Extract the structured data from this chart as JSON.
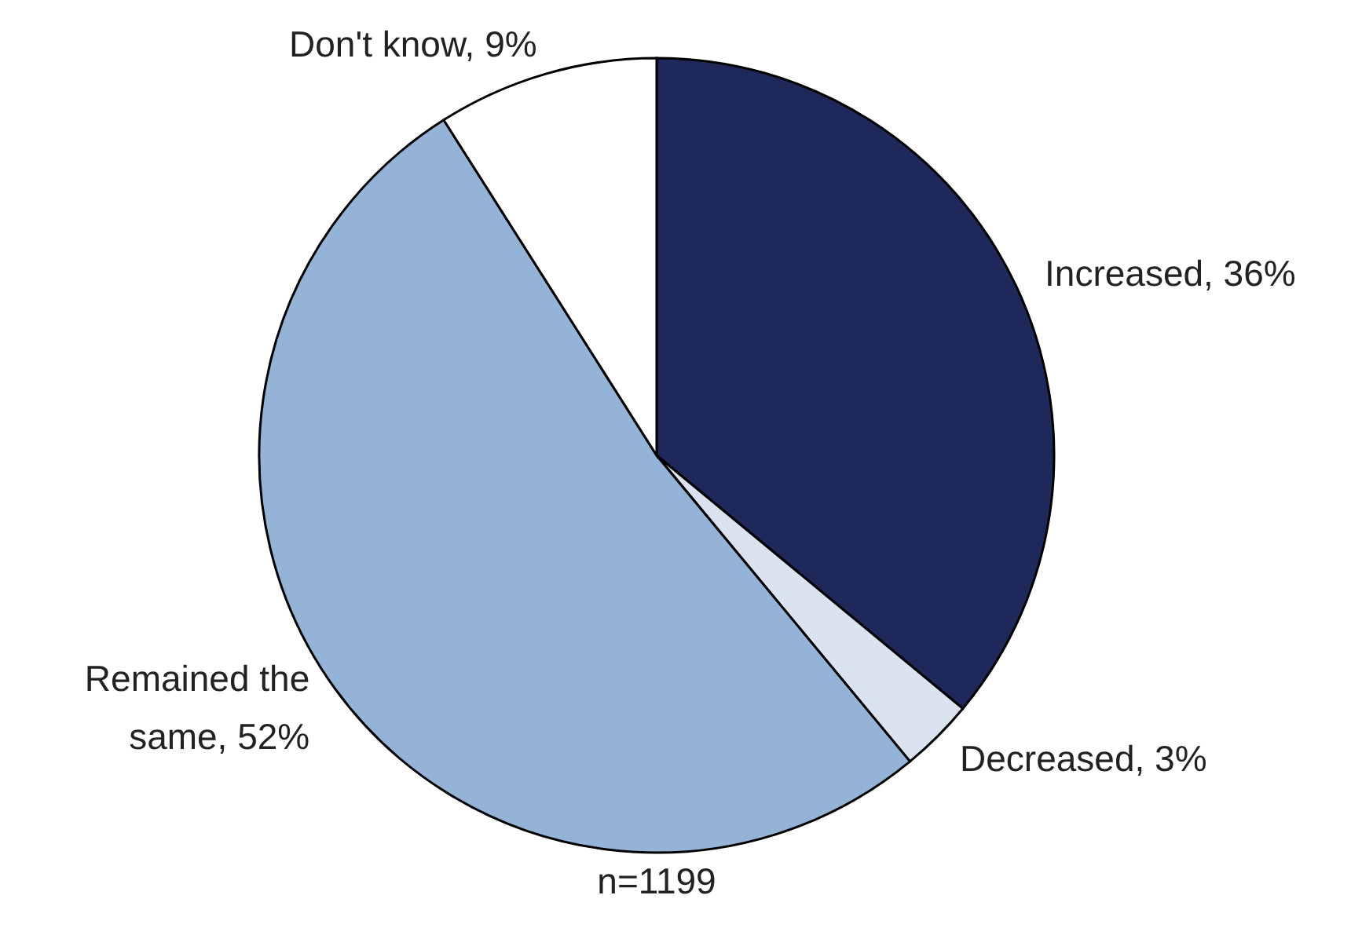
{
  "chart_data": {
    "type": "pie",
    "categories": [
      "Increased",
      "Decreased",
      "Remained the same",
      "Don't know"
    ],
    "values": [
      36,
      3,
      52,
      9
    ],
    "value_labels": [
      "36%",
      "3%",
      "52%",
      "9%"
    ],
    "colors": [
      "#1f285a",
      "#dce3f0",
      "#95b3d7",
      "#ffffff"
    ],
    "annotations": [
      "n=1199"
    ]
  }
}
